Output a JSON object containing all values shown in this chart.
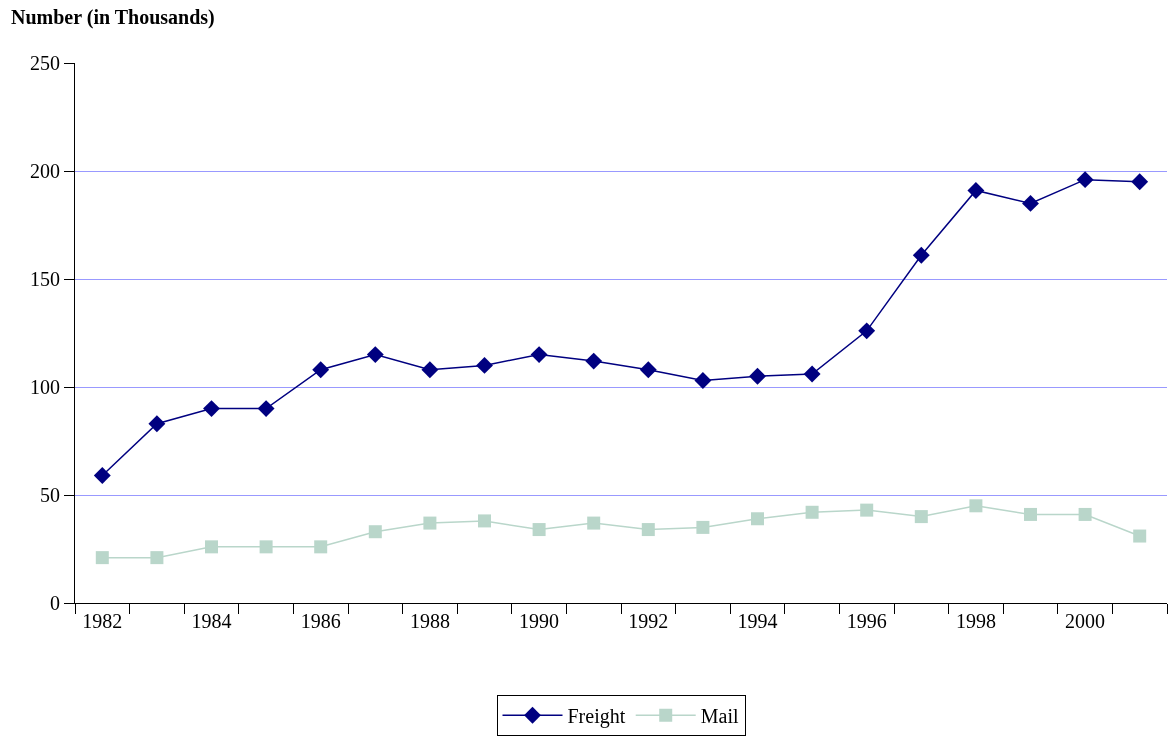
{
  "chart_data": {
    "type": "line",
    "ylabel": "Number (in Thousands)",
    "categories": [
      "1982",
      null,
      "1984",
      null,
      "1986",
      null,
      "1988",
      null,
      "1990",
      null,
      "1992",
      null,
      "1994",
      null,
      "1996",
      null,
      "1998",
      null,
      "2000",
      null
    ],
    "series": [
      {
        "name": "Freight",
        "color": "#000080",
        "marker": "diamond",
        "values": [
          59,
          83,
          90,
          90,
          108,
          115,
          108,
          110,
          115,
          112,
          108,
          103,
          105,
          106,
          126,
          161,
          191,
          185,
          196,
          195
        ]
      },
      {
        "name": "Mail",
        "color": "#b9d6ca",
        "marker": "square",
        "values": [
          21,
          21,
          26,
          26,
          26,
          33,
          37,
          38,
          34,
          37,
          34,
          35,
          39,
          42,
          43,
          40,
          45,
          41,
          41,
          31
        ]
      }
    ],
    "ylim": [
      0,
      250
    ],
    "yticks": [
      0,
      50,
      100,
      150,
      200,
      250
    ],
    "grid": "y",
    "legend": "bottom",
    "line_style": "solid"
  }
}
